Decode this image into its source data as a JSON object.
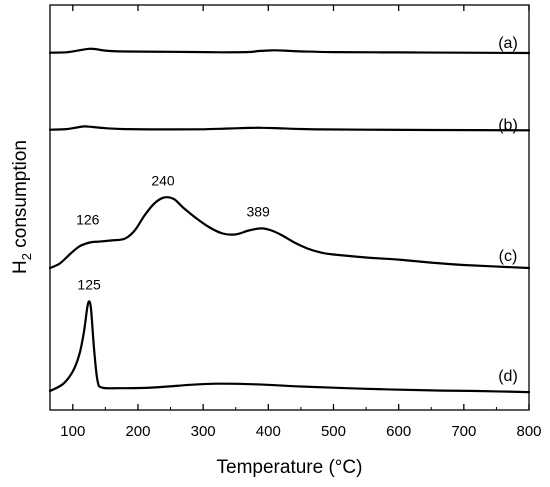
{
  "chart_data": {
    "type": "line",
    "title": "",
    "xlabel": "Temperature (°C)",
    "ylabel": "H",
    "ylabel_subscript": "2",
    "ylabel_rest": " consumption",
    "xlim": [
      65,
      800
    ],
    "x_ticks": [
      100,
      200,
      300,
      400,
      500,
      600,
      700,
      800
    ],
    "x_tick_labels": [
      "100",
      "200",
      "300",
      "400",
      "500",
      "600",
      "700",
      "800"
    ],
    "y_tick_labels": false,
    "grid": false,
    "series": [
      {
        "name": "(a)",
        "x": [
          65,
          90,
          110,
          125,
          135,
          150,
          180,
          250,
          330,
          370,
          385,
          400,
          410,
          425,
          450,
          500,
          600,
          700,
          800
        ],
        "y": [
          0.02,
          0.05,
          0.18,
          0.28,
          0.26,
          0.16,
          0.1,
          0.08,
          0.05,
          0.07,
          0.13,
          0.17,
          0.18,
          0.16,
          0.11,
          0.06,
          0.04,
          0.02,
          0.0
        ]
      },
      {
        "name": "(b)",
        "x": [
          65,
          90,
          105,
          118,
          130,
          150,
          180,
          250,
          300,
          340,
          370,
          390,
          410,
          440,
          480,
          550,
          650,
          800
        ],
        "y": [
          0.02,
          0.06,
          0.16,
          0.24,
          0.2,
          0.12,
          0.06,
          0.04,
          0.05,
          0.1,
          0.14,
          0.15,
          0.13,
          0.08,
          0.04,
          0.02,
          0.0,
          -0.02
        ]
      },
      {
        "name": "(c)",
        "x": [
          65,
          80,
          95,
          110,
          126,
          140,
          160,
          180,
          195,
          210,
          225,
          240,
          255,
          270,
          290,
          310,
          330,
          350,
          370,
          389,
          405,
          420,
          440,
          460,
          480,
          500,
          550,
          600,
          650,
          700,
          800
        ],
        "y": [
          0.0,
          0.15,
          0.45,
          0.72,
          0.85,
          0.88,
          0.92,
          0.98,
          1.25,
          1.75,
          2.15,
          2.35,
          2.3,
          2.0,
          1.65,
          1.35,
          1.15,
          1.12,
          1.25,
          1.32,
          1.25,
          1.1,
          0.85,
          0.65,
          0.52,
          0.45,
          0.35,
          0.28,
          0.18,
          0.1,
          0.0
        ]
      },
      {
        "name": "(d)",
        "x": [
          65,
          85,
          100,
          110,
          117,
          122,
          125,
          128,
          133,
          138,
          145,
          170,
          220,
          280,
          320,
          380,
          450,
          550,
          650,
          720,
          800
        ],
        "y": [
          0.0,
          0.25,
          0.7,
          1.3,
          2.1,
          2.95,
          3.2,
          2.9,
          1.4,
          0.35,
          0.12,
          0.1,
          0.12,
          0.22,
          0.26,
          0.24,
          0.16,
          0.08,
          0.02,
          0.0,
          -0.04
        ]
      }
    ],
    "annotations": [
      {
        "text": "126",
        "series": "(c)",
        "x": 126
      },
      {
        "text": "240",
        "series": "(c)",
        "x": 240
      },
      {
        "text": "389",
        "series": "(c)",
        "x": 389
      },
      {
        "text": "125",
        "series": "(d)",
        "x": 125
      }
    ]
  }
}
